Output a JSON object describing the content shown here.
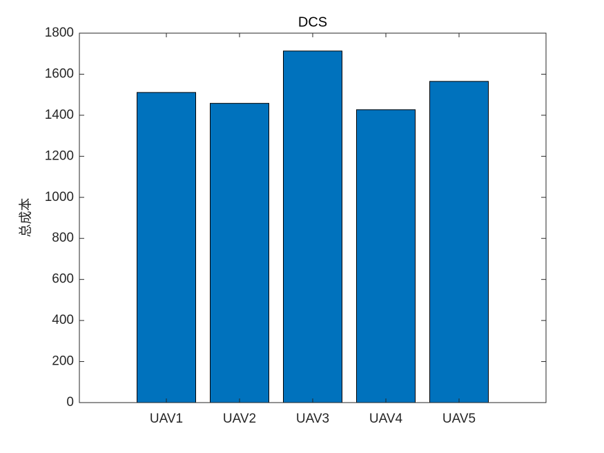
{
  "chart_data": {
    "type": "bar",
    "title": "DCS",
    "y_label": "总成本",
    "categories": [
      "UAV1",
      "UAV2",
      "UAV3",
      "UAV4",
      "UAV5"
    ],
    "values": [
      1511,
      1458,
      1713,
      1427,
      1565
    ],
    "color": "#0072bd",
    "ylim": [
      0,
      1800
    ],
    "yticks": [
      0,
      200,
      400,
      600,
      800,
      1000,
      1200,
      1400,
      1600,
      1800
    ]
  }
}
